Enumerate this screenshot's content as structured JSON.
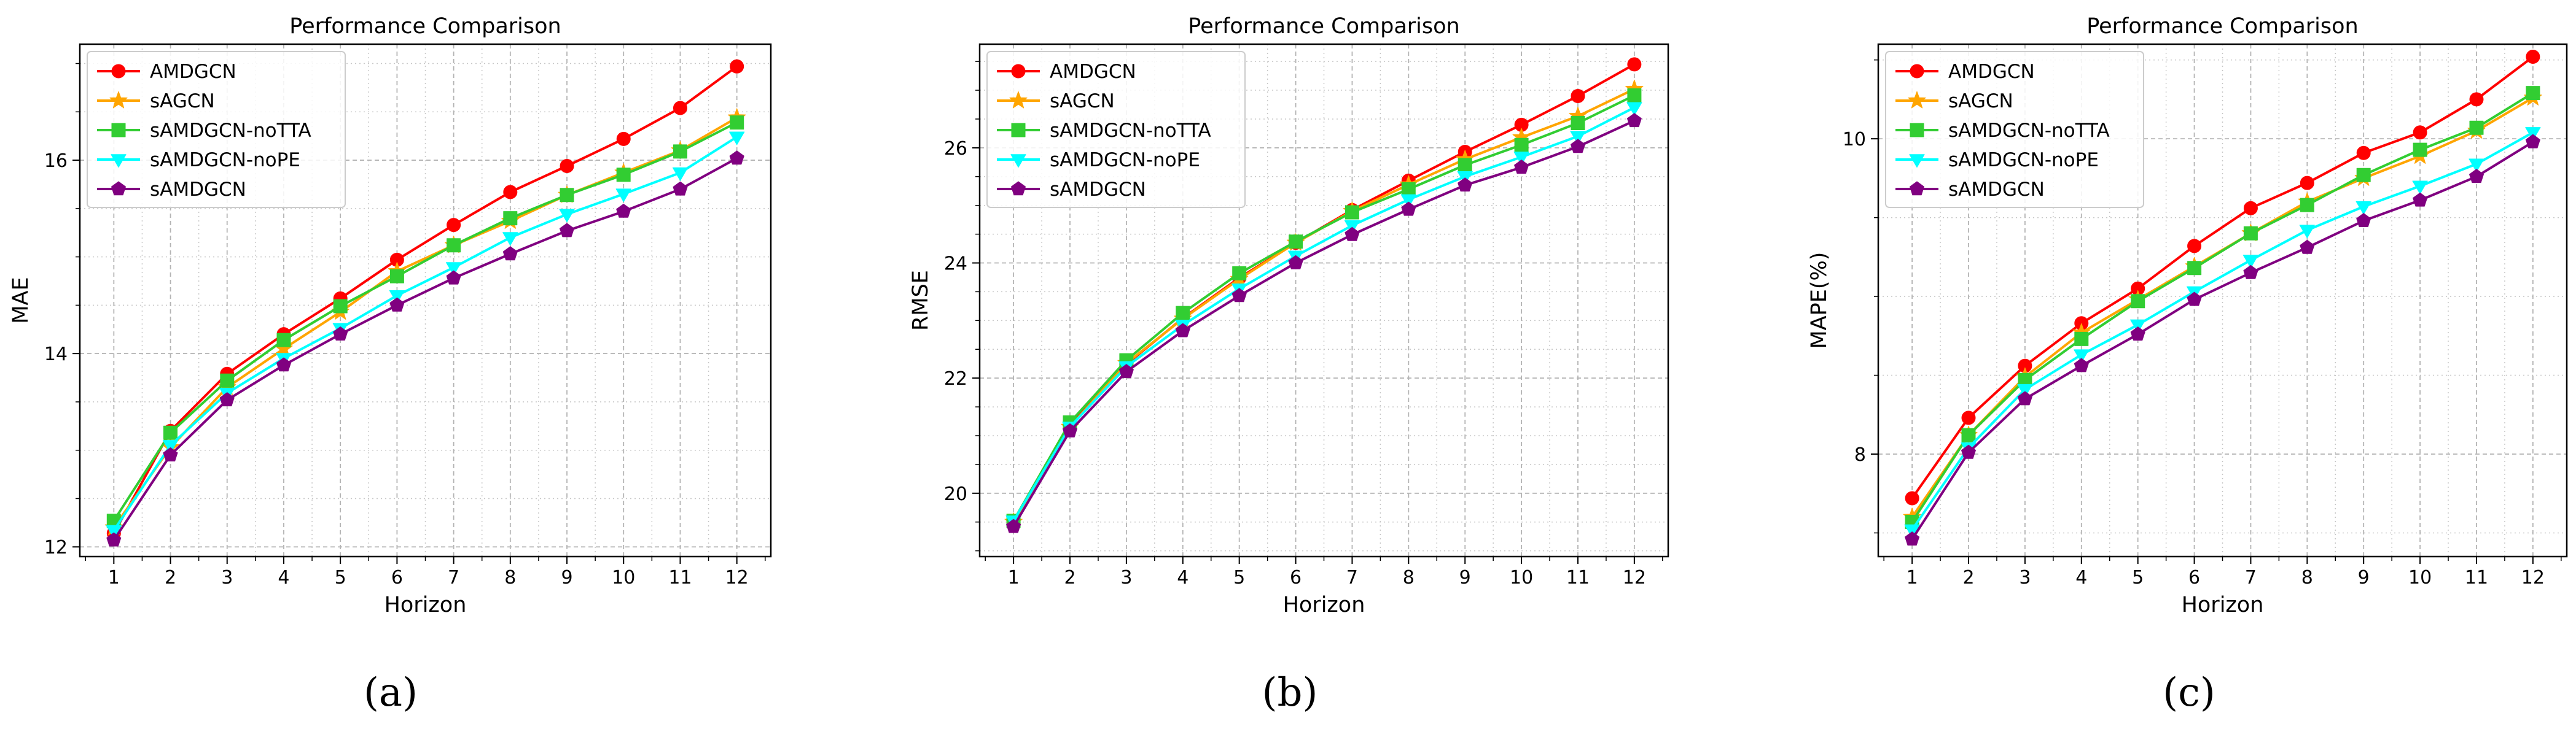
{
  "chart_data": [
    {
      "type": "line",
      "panel_label": "(a)",
      "title": "Performance Comparison",
      "xlabel": "Horizon",
      "ylabel": "MAE",
      "x": [
        1,
        2,
        3,
        4,
        5,
        6,
        7,
        8,
        9,
        10,
        11,
        12
      ],
      "xlim": [
        0.4,
        12.6
      ],
      "ylim": [
        11.9,
        17.2
      ],
      "yticks": [
        12,
        14,
        16
      ],
      "yminor": 0.5,
      "grid": true,
      "legend": "top-left",
      "series": [
        {
          "name": "AMDGCN",
          "color": "#ff0000",
          "marker": "circle",
          "values": [
            12.14,
            13.2,
            13.79,
            14.2,
            14.57,
            14.97,
            15.33,
            15.67,
            15.94,
            16.22,
            16.54,
            16.97
          ]
        },
        {
          "name": "sAGCN",
          "color": "#ffa500",
          "marker": "star",
          "values": [
            12.2,
            13.03,
            13.65,
            14.05,
            14.43,
            14.85,
            15.12,
            15.37,
            15.64,
            15.87,
            16.1,
            16.44
          ]
        },
        {
          "name": "sAMDGCN-noTTA",
          "color": "#32cd32",
          "marker": "square",
          "values": [
            12.27,
            13.18,
            13.72,
            14.14,
            14.49,
            14.8,
            15.12,
            15.4,
            15.64,
            15.85,
            16.09,
            16.39
          ]
        },
        {
          "name": "sAMDGCN-noPE",
          "color": "#00ffff",
          "marker": "triangle-down",
          "values": [
            12.17,
            13.05,
            13.59,
            13.95,
            14.26,
            14.6,
            14.89,
            15.2,
            15.44,
            15.65,
            15.87,
            16.24
          ]
        },
        {
          "name": "sAMDGCN",
          "color": "#800080",
          "marker": "pentagon",
          "values": [
            12.07,
            12.95,
            13.52,
            13.88,
            14.2,
            14.5,
            14.78,
            15.03,
            15.27,
            15.47,
            15.7,
            16.02
          ]
        }
      ]
    },
    {
      "type": "line",
      "panel_label": "(b)",
      "title": "Performance Comparison",
      "xlabel": "Horizon",
      "ylabel": "RMSE",
      "x": [
        1,
        2,
        3,
        4,
        5,
        6,
        7,
        8,
        9,
        10,
        11,
        12
      ],
      "xlim": [
        0.4,
        12.6
      ],
      "ylim": [
        18.9,
        27.8
      ],
      "yticks": [
        20,
        22,
        24,
        26
      ],
      "yminor": 0.5,
      "grid": true,
      "legend": "top-left",
      "series": [
        {
          "name": "AMDGCN",
          "color": "#ff0000",
          "marker": "circle",
          "values": [
            19.48,
            21.18,
            22.24,
            23.04,
            23.74,
            24.35,
            24.92,
            25.43,
            25.93,
            26.4,
            26.9,
            27.45
          ]
        },
        {
          "name": "sAGCN",
          "color": "#ffa500",
          "marker": "star",
          "values": [
            19.5,
            21.15,
            22.26,
            23.03,
            23.72,
            24.35,
            24.9,
            25.36,
            25.8,
            26.18,
            26.55,
            27.02
          ]
        },
        {
          "name": "sAMDGCN-noTTA",
          "color": "#32cd32",
          "marker": "square",
          "values": [
            19.52,
            21.23,
            22.31,
            23.13,
            23.82,
            24.37,
            24.88,
            25.28,
            25.7,
            26.05,
            26.43,
            26.91
          ]
        },
        {
          "name": "sAMDGCN-noPE",
          "color": "#00ffff",
          "marker": "triangle-down",
          "values": [
            19.52,
            21.15,
            22.2,
            22.92,
            23.55,
            24.12,
            24.65,
            25.1,
            25.5,
            25.84,
            26.2,
            26.7
          ]
        },
        {
          "name": "sAMDGCN",
          "color": "#800080",
          "marker": "pentagon",
          "values": [
            19.42,
            21.08,
            22.11,
            22.82,
            23.43,
            24.0,
            24.49,
            24.93,
            25.35,
            25.66,
            26.02,
            26.47
          ]
        }
      ]
    },
    {
      "type": "line",
      "panel_label": "(c)",
      "title": "Performance Comparison",
      "xlabel": "Horizon",
      "ylabel": "MAPE(%)",
      "x": [
        1,
        2,
        3,
        4,
        5,
        6,
        7,
        8,
        9,
        10,
        11,
        12
      ],
      "xlim": [
        0.4,
        12.6
      ],
      "ylim": [
        7.35,
        10.6
      ],
      "yticks": [
        8,
        10
      ],
      "yminor": 0.5,
      "grid": true,
      "legend": "top-left",
      "series": [
        {
          "name": "AMDGCN",
          "color": "#ff0000",
          "marker": "circle",
          "values": [
            7.72,
            8.23,
            8.56,
            8.83,
            9.05,
            9.32,
            9.56,
            9.72,
            9.91,
            10.04,
            10.25,
            10.52
          ]
        },
        {
          "name": "sAGCN",
          "color": "#ffa500",
          "marker": "star",
          "values": [
            7.6,
            8.12,
            8.49,
            8.77,
            8.98,
            9.19,
            9.4,
            9.6,
            9.75,
            9.89,
            10.05,
            10.26
          ]
        },
        {
          "name": "sAMDGCN-noTTA",
          "color": "#32cd32",
          "marker": "square",
          "values": [
            7.57,
            8.12,
            8.47,
            8.73,
            8.97,
            9.18,
            9.4,
            9.58,
            9.77,
            9.93,
            10.07,
            10.29
          ]
        },
        {
          "name": "sAMDGCN-noPE",
          "color": "#00ffff",
          "marker": "triangle-down",
          "values": [
            7.52,
            8.04,
            8.41,
            8.63,
            8.82,
            9.03,
            9.23,
            9.42,
            9.57,
            9.7,
            9.84,
            10.04
          ]
        },
        {
          "name": "sAMDGCN",
          "color": "#800080",
          "marker": "pentagon",
          "values": [
            7.46,
            8.01,
            8.35,
            8.56,
            8.76,
            8.98,
            9.15,
            9.31,
            9.48,
            9.61,
            9.76,
            9.98
          ]
        }
      ]
    }
  ]
}
